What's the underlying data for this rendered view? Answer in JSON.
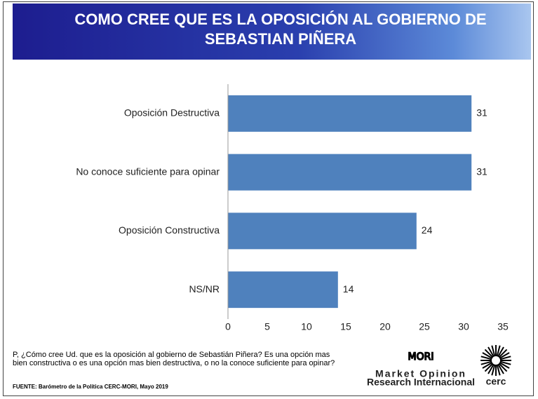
{
  "chart_data": {
    "type": "barh",
    "title": "COMO CREE QUE ES LA OPOSICIÓN AL GOBIERNO DE SEBASTIAN PIÑERA",
    "categories": [
      "Oposición Destructiva",
      "No conoce suficiente para opinar",
      "Oposición Constructiva",
      "NS/NR"
    ],
    "values": [
      31,
      31,
      24,
      14
    ],
    "color": "#4f81bd",
    "xlim": [
      0,
      35
    ],
    "xticks": [
      0,
      5,
      10,
      15,
      20,
      25,
      30,
      35
    ],
    "grid": false
  },
  "footnote": "P, ¿Cómo cree Ud. que es la oposición al gobierno de Sebastián Piñera? Es una opción mas bien constructiva o es una opción mas bien destructiva, o no la conoce suficiente para opinar?",
  "source": "FUENTE: Barómetro de la Política CERC-MORI, Mayo 2019",
  "logos": {
    "mori": "MORI",
    "mori_line1": "Market Opinion",
    "mori_line2": "Research Internacional",
    "cerc": "cerc"
  }
}
